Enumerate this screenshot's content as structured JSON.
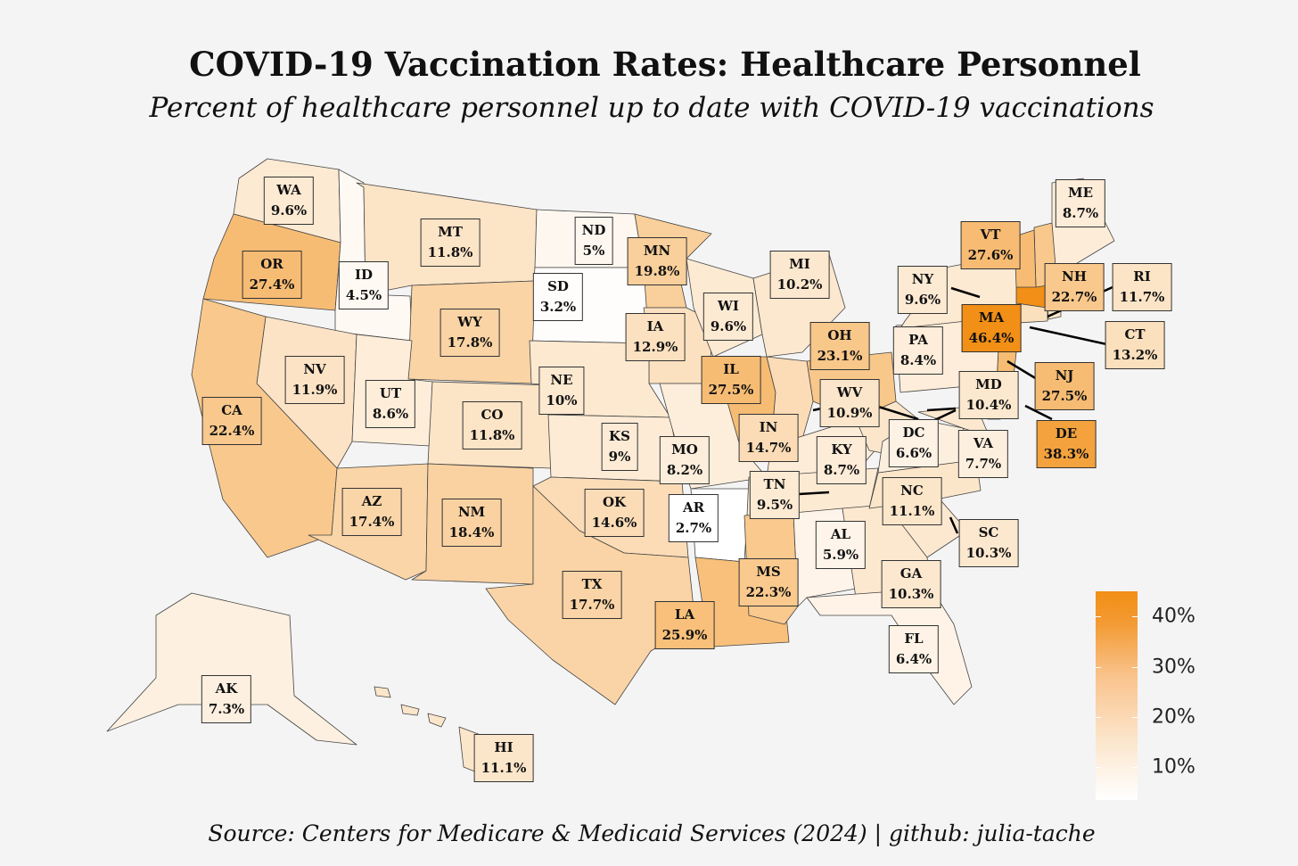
{
  "title": "COVID-19 Vaccination Rates: Healthcare Personnel",
  "subtitle": "Percent of healthcare personnel up to date with COVID-19 vaccinations",
  "source": "Source: Centers for Medicare & Medicaid Services (2024) | github: julia-tache",
  "colorscale": {
    "low": "#ffffff",
    "high": "#f28f16",
    "min": 2.7,
    "max": 46.4
  },
  "legend_ticks": [
    {
      "label": "10%",
      "value": 10
    },
    {
      "label": "20%",
      "value": 20
    },
    {
      "label": "30%",
      "value": 30
    },
    {
      "label": "40%",
      "value": 40
    }
  ],
  "states": [
    {
      "abbr": "WA",
      "label": "9.6%",
      "value": 9.6
    },
    {
      "abbr": "OR",
      "label": "27.4%",
      "value": 27.4
    },
    {
      "abbr": "ID",
      "label": "4.5%",
      "value": 4.5
    },
    {
      "abbr": "MT",
      "label": "11.8%",
      "value": 11.8
    },
    {
      "abbr": "ND",
      "label": "5%",
      "value": 5
    },
    {
      "abbr": "MN",
      "label": "19.8%",
      "value": 19.8
    },
    {
      "abbr": "SD",
      "label": "3.2%",
      "value": 3.2
    },
    {
      "abbr": "WY",
      "label": "17.8%",
      "value": 17.8
    },
    {
      "abbr": "IA",
      "label": "12.9%",
      "value": 12.9
    },
    {
      "abbr": "WI",
      "label": "9.6%",
      "value": 9.6
    },
    {
      "abbr": "MI",
      "label": "10.2%",
      "value": 10.2
    },
    {
      "abbr": "NV",
      "label": "11.9%",
      "value": 11.9
    },
    {
      "abbr": "UT",
      "label": "8.6%",
      "value": 8.6
    },
    {
      "abbr": "CA",
      "label": "22.4%",
      "value": 22.4
    },
    {
      "abbr": "CO",
      "label": "11.8%",
      "value": 11.8
    },
    {
      "abbr": "NE",
      "label": "10%",
      "value": 10
    },
    {
      "abbr": "IL",
      "label": "27.5%",
      "value": 27.5
    },
    {
      "abbr": "OH",
      "label": "23.1%",
      "value": 23.1
    },
    {
      "abbr": "KS",
      "label": "9%",
      "value": 9
    },
    {
      "abbr": "MO",
      "label": "8.2%",
      "value": 8.2
    },
    {
      "abbr": "IN",
      "label": "14.7%",
      "value": 14.7
    },
    {
      "abbr": "KY",
      "label": "8.7%",
      "value": 8.7
    },
    {
      "abbr": "WV",
      "label": "10.9%",
      "value": 10.9
    },
    {
      "abbr": "AZ",
      "label": "17.4%",
      "value": 17.4
    },
    {
      "abbr": "NM",
      "label": "18.4%",
      "value": 18.4
    },
    {
      "abbr": "OK",
      "label": "14.6%",
      "value": 14.6
    },
    {
      "abbr": "AR",
      "label": "2.7%",
      "value": 2.7
    },
    {
      "abbr": "TN",
      "label": "9.5%",
      "value": 9.5
    },
    {
      "abbr": "TX",
      "label": "17.7%",
      "value": 17.7
    },
    {
      "abbr": "LA",
      "label": "25.9%",
      "value": 25.9
    },
    {
      "abbr": "MS",
      "label": "22.3%",
      "value": 22.3
    },
    {
      "abbr": "AL",
      "label": "5.9%",
      "value": 5.9
    },
    {
      "abbr": "GA",
      "label": "10.3%",
      "value": 10.3
    },
    {
      "abbr": "FL",
      "label": "6.4%",
      "value": 6.4
    },
    {
      "abbr": "SC",
      "label": "10.3%",
      "value": 10.3
    },
    {
      "abbr": "NC",
      "label": "11.1%",
      "value": 11.1
    },
    {
      "abbr": "VA",
      "label": "7.7%",
      "value": 7.7
    },
    {
      "abbr": "DC",
      "label": "6.6%",
      "value": 6.6
    },
    {
      "abbr": "MD",
      "label": "10.4%",
      "value": 10.4
    },
    {
      "abbr": "DE",
      "label": "38.3%",
      "value": 38.3
    },
    {
      "abbr": "NJ",
      "label": "27.5%",
      "value": 27.5
    },
    {
      "abbr": "PA",
      "label": "8.4%",
      "value": 8.4
    },
    {
      "abbr": "NY",
      "label": "9.6%",
      "value": 9.6
    },
    {
      "abbr": "CT",
      "label": "13.2%",
      "value": 13.2
    },
    {
      "abbr": "RI",
      "label": "11.7%",
      "value": 11.7
    },
    {
      "abbr": "MA",
      "label": "46.4%",
      "value": 46.4
    },
    {
      "abbr": "NH",
      "label": "22.7%",
      "value": 22.7
    },
    {
      "abbr": "VT",
      "label": "27.6%",
      "value": 27.6
    },
    {
      "abbr": "ME",
      "label": "8.7%",
      "value": 8.7
    },
    {
      "abbr": "AK",
      "label": "7.3%",
      "value": 7.3
    },
    {
      "abbr": "HI",
      "label": "11.1%",
      "value": 11.1
    }
  ]
}
